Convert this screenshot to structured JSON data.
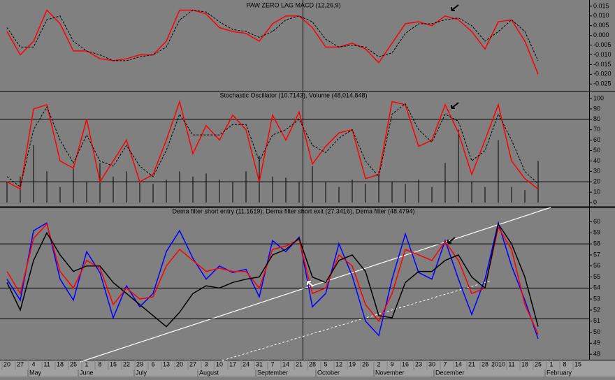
{
  "chart_data": [
    {
      "type": "line",
      "title": "PAW ZERO LAG MACD (12,26,9)",
      "ylim": [
        -0.0285,
        0.0182
      ],
      "yticks": [
        0.015,
        {
          "value": 0.01,
          "label": "0.010"
        },
        0.005,
        {
          "value": 0,
          "label": "0.000"
        },
        -0.005,
        {
          "value": -0.01,
          "label": "-0.010"
        },
        -0.015,
        {
          "value": -0.02,
          "label": "-0.020"
        },
        -0.025
      ],
      "series": [
        {
          "color": "#ff0000",
          "dash": false,
          "values": [
            0.002,
            -0.01,
            -0.003,
            0.013,
            0.006,
            -0.008,
            -0.008,
            -0.012,
            -0.013,
            -0.012,
            -0.01,
            -0.01,
            -0.003,
            0.013,
            0.013,
            0.011,
            0.004,
            0.002,
            0.001,
            -0.003,
            0.006,
            0.01,
            0.01,
            0.004,
            -0.006,
            -0.006,
            -0.004,
            -0.007,
            -0.014,
            -0.004,
            0.006,
            0.007,
            0.005,
            0.01,
            0.008,
            0.002,
            -0.007,
            0.007,
            0.008,
            -0.003,
            -0.02,
            null,
            null,
            null
          ]
        },
        {
          "color": "#000000",
          "dash": true,
          "values": [
            0.004,
            -0.006,
            -0.006,
            0.008,
            0.01,
            -0.003,
            -0.008,
            -0.01,
            -0.013,
            -0.013,
            -0.011,
            -0.01,
            -0.006,
            0.008,
            0.013,
            0.012,
            0.007,
            0.003,
            0.002,
            -0.001,
            0.002,
            0.008,
            0.01,
            0.007,
            -0.002,
            -0.006,
            -0.005,
            -0.006,
            -0.011,
            -0.009,
            0.001,
            0.006,
            0.006,
            0.008,
            0.009,
            0.005,
            -0.003,
            0.002,
            0.008,
            0.002,
            -0.013,
            null,
            null,
            null
          ]
        }
      ]
    },
    {
      "type": "line",
      "title": "Stochastic Oscillator (10.7143), Volume (48,014,848)",
      "ylim": [
        -4,
        106.7
      ],
      "yticks": [
        0,
        10,
        20,
        30,
        40,
        50,
        60,
        70,
        80,
        90,
        100
      ],
      "hlines": [
        80,
        20
      ],
      "series": [
        {
          "color": "#000000",
          "type": "bar",
          "values": [
            20,
            25,
            55,
            30,
            15,
            35,
            20,
            38,
            25,
            30,
            20,
            18,
            22,
            30,
            25,
            28,
            22,
            20,
            30,
            45,
            25,
            24,
            20,
            35,
            20,
            15,
            22,
            18,
            30,
            20,
            18,
            22,
            15,
            38,
            70,
            20,
            15,
            60,
            15,
            12,
            40,
            null,
            null,
            null
          ]
        },
        {
          "color": "#ff0000",
          "dash": false,
          "values": [
            20,
            13,
            90,
            94,
            40,
            33,
            80,
            20,
            40,
            60,
            20,
            27,
            60,
            97,
            47,
            74,
            60,
            84,
            70,
            20,
            84,
            60,
            87,
            37,
            54,
            67,
            70,
            23,
            27,
            97,
            94,
            54,
            60,
            94,
            67,
            27,
            60,
            94,
            40,
            23,
            13,
            null,
            null,
            null
          ]
        },
        {
          "color": "#000000",
          "dash": true,
          "values": [
            25,
            15,
            70,
            92,
            60,
            38,
            65,
            40,
            35,
            55,
            35,
            25,
            50,
            85,
            65,
            65,
            65,
            75,
            75,
            40,
            65,
            70,
            80,
            55,
            48,
            62,
            70,
            40,
            25,
            85,
            95,
            70,
            58,
            85,
            78,
            40,
            50,
            85,
            60,
            30,
            18,
            null,
            null,
            null
          ]
        }
      ]
    },
    {
      "type": "line",
      "title": "Dema filter short entry (11.1619), Dema filter short exit (27.3416), Dema filter (48.4794)",
      "ylim": [
        47.5,
        61.3
      ],
      "yticks": [
        48,
        49,
        50,
        51,
        52,
        53,
        54,
        55,
        56,
        57,
        58,
        59,
        60
      ],
      "hlines": [
        58,
        54,
        51.2
      ],
      "categories": [
        "20",
        "27",
        "4",
        "11",
        "18",
        "25",
        "1",
        "8",
        "15",
        "22",
        "29",
        "6",
        "13",
        "20",
        "27",
        "3",
        "10",
        "17",
        "24",
        "31",
        "7",
        "14",
        "21",
        "28",
        "5",
        "12",
        "19",
        "26",
        "2",
        "9",
        "16",
        "23",
        "30",
        "7",
        "14",
        "21",
        "28",
        "2010",
        "11",
        "18",
        "25",
        "1",
        "8",
        "15"
      ],
      "months": [
        "May",
        "June",
        "July",
        "August",
        "September",
        "October",
        "November",
        "December",
        "February"
      ],
      "series": [
        {
          "color": "#0000ff",
          "dash": false,
          "values": [
            54.8,
            52.9,
            59.2,
            59.9,
            54.8,
            52.9,
            57.3,
            55.4,
            51.3,
            54.2,
            52.3,
            53.5,
            57.3,
            59.2,
            56.7,
            54.8,
            56.0,
            55.4,
            55.7,
            53.2,
            58.3,
            57.3,
            58.6,
            52.3,
            53.5,
            58.0,
            55.1,
            51.0,
            49.7,
            54.8,
            58.9,
            55.4,
            54.8,
            58.3,
            54.8,
            51.6,
            54.8,
            59.9,
            56.0,
            52.9,
            49.4,
            null,
            null,
            null
          ]
        },
        {
          "color": "#ff0000",
          "dash": false,
          "values": [
            55.5,
            53.5,
            58.5,
            59.8,
            55.5,
            54.0,
            56.5,
            55.8,
            52.5,
            54.0,
            53.0,
            53.2,
            56.0,
            57.5,
            56.5,
            55.5,
            55.8,
            55.5,
            55.5,
            54.0,
            57.5,
            57.8,
            58.4,
            53.5,
            54.0,
            57.0,
            56.0,
            52.5,
            51.0,
            53.5,
            57.5,
            57.0,
            56.5,
            58.2,
            56.5,
            53.5,
            54.0,
            59.5,
            57.5,
            52.5,
            49.8,
            null,
            null,
            null
          ]
        },
        {
          "color": "#000000",
          "dash": false,
          "values": [
            54.5,
            52.0,
            56.5,
            59.0,
            57.0,
            55.5,
            56.0,
            56.0,
            54.5,
            53.5,
            52.5,
            51.5,
            50.5,
            51.8,
            53.5,
            54.2,
            54.0,
            54.5,
            54.8,
            55.0,
            57.0,
            57.5,
            58.5,
            55.0,
            54.5,
            56.5,
            57.0,
            55.5,
            51.5,
            51.3,
            54.5,
            55.5,
            55.5,
            56.5,
            57.0,
            55.0,
            54.0,
            59.8,
            58.0,
            55.0,
            50.5,
            null,
            null,
            null
          ]
        }
      ]
    }
  ]
}
